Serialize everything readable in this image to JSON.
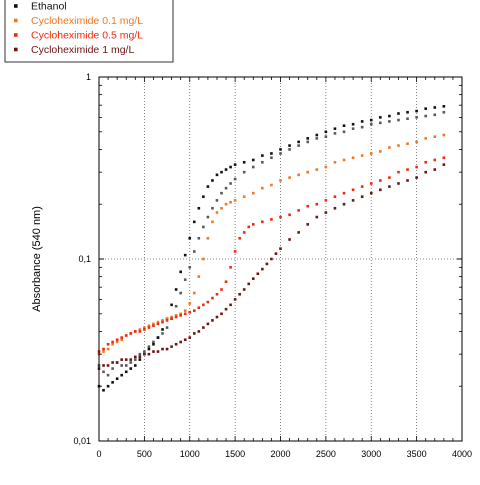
{
  "chart_data": {
    "type": "scatter",
    "title": "",
    "xlabel": "",
    "ylabel": "Absorbance (540 nm)",
    "xlim": [
      0,
      4000
    ],
    "ylim": [
      0.01,
      1
    ],
    "yscale": "log",
    "grid": true,
    "legend_position": "top-left outside plot",
    "x_ticks": [
      0,
      500,
      1000,
      1500,
      2000,
      2500,
      3000,
      3500,
      4000
    ],
    "x_tick_labels": [
      "0",
      "500",
      "1000",
      "1500",
      "2000",
      "2500",
      "3000",
      "3500",
      "4000"
    ],
    "y_ticks": [
      0.01,
      0.1,
      1
    ],
    "y_tick_labels": [
      "0,01",
      "0,1",
      "1"
    ],
    "series": [
      {
        "name": "",
        "color": "#595959",
        "legend": false,
        "points": [
          [
            0,
            0.026
          ],
          [
            50,
            0.024
          ],
          [
            100,
            0.023
          ],
          [
            150,
            0.025
          ],
          [
            200,
            0.027
          ],
          [
            250,
            0.026
          ],
          [
            300,
            0.026
          ],
          [
            350,
            0.027
          ],
          [
            400,
            0.028
          ],
          [
            450,
            0.03
          ],
          [
            500,
            0.031
          ],
          [
            550,
            0.033
          ],
          [
            600,
            0.035
          ],
          [
            650,
            0.037
          ],
          [
            700,
            0.039
          ],
          [
            750,
            0.042
          ],
          [
            800,
            0.047
          ],
          [
            850,
            0.055
          ],
          [
            900,
            0.065
          ],
          [
            950,
            0.077
          ],
          [
            1000,
            0.09
          ],
          [
            1050,
            0.11
          ],
          [
            1100,
            0.13
          ],
          [
            1150,
            0.15
          ],
          [
            1200,
            0.17
          ],
          [
            1250,
            0.19
          ],
          [
            1300,
            0.21
          ],
          [
            1350,
            0.23
          ],
          [
            1400,
            0.245
          ],
          [
            1450,
            0.26
          ],
          [
            1500,
            0.275
          ],
          [
            1600,
            0.3
          ],
          [
            1700,
            0.32
          ],
          [
            1800,
            0.34
          ],
          [
            1900,
            0.36
          ],
          [
            2000,
            0.38
          ],
          [
            2100,
            0.4
          ],
          [
            2200,
            0.42
          ],
          [
            2300,
            0.44
          ],
          [
            2400,
            0.46
          ],
          [
            2500,
            0.47
          ],
          [
            2600,
            0.49
          ],
          [
            2700,
            0.5
          ],
          [
            2800,
            0.52
          ],
          [
            2900,
            0.53
          ],
          [
            3000,
            0.55
          ],
          [
            3100,
            0.56
          ],
          [
            3200,
            0.57
          ],
          [
            3300,
            0.58
          ],
          [
            3400,
            0.59
          ],
          [
            3500,
            0.6
          ],
          [
            3600,
            0.61
          ],
          [
            3700,
            0.62
          ],
          [
            3800,
            0.64
          ]
        ]
      },
      {
        "name": "Ethanol",
        "color": "#111111",
        "legend": true,
        "points": [
          [
            0,
            0.02
          ],
          [
            50,
            0.019
          ],
          [
            100,
            0.02
          ],
          [
            150,
            0.021
          ],
          [
            200,
            0.022
          ],
          [
            250,
            0.023
          ],
          [
            300,
            0.024
          ],
          [
            350,
            0.025
          ],
          [
            400,
            0.026
          ],
          [
            450,
            0.028
          ],
          [
            500,
            0.03
          ],
          [
            550,
            0.032
          ],
          [
            600,
            0.034
          ],
          [
            650,
            0.037
          ],
          [
            700,
            0.041
          ],
          [
            750,
            0.047
          ],
          [
            800,
            0.056
          ],
          [
            850,
            0.068
          ],
          [
            900,
            0.085
          ],
          [
            950,
            0.105
          ],
          [
            1000,
            0.13
          ],
          [
            1050,
            0.16
          ],
          [
            1100,
            0.19
          ],
          [
            1150,
            0.22
          ],
          [
            1200,
            0.25
          ],
          [
            1250,
            0.27
          ],
          [
            1300,
            0.29
          ],
          [
            1350,
            0.3
          ],
          [
            1400,
            0.31
          ],
          [
            1450,
            0.32
          ],
          [
            1500,
            0.33
          ],
          [
            1600,
            0.34
          ],
          [
            1700,
            0.35
          ],
          [
            1800,
            0.37
          ],
          [
            1900,
            0.38
          ],
          [
            2000,
            0.4
          ],
          [
            2100,
            0.42
          ],
          [
            2200,
            0.44
          ],
          [
            2300,
            0.46
          ],
          [
            2400,
            0.48
          ],
          [
            2500,
            0.5
          ],
          [
            2600,
            0.52
          ],
          [
            2700,
            0.54
          ],
          [
            2800,
            0.55
          ],
          [
            2900,
            0.57
          ],
          [
            3000,
            0.58
          ],
          [
            3100,
            0.6
          ],
          [
            3200,
            0.61
          ],
          [
            3300,
            0.63
          ],
          [
            3400,
            0.64
          ],
          [
            3500,
            0.65
          ],
          [
            3600,
            0.67
          ],
          [
            3700,
            0.68
          ],
          [
            3800,
            0.69
          ]
        ]
      },
      {
        "name": "Cycloheximide 0.1 mg/L",
        "color": "#f07820",
        "legend": true,
        "points": [
          [
            0,
            0.03
          ],
          [
            50,
            0.031
          ],
          [
            100,
            0.032
          ],
          [
            150,
            0.034
          ],
          [
            200,
            0.035
          ],
          [
            250,
            0.036
          ],
          [
            300,
            0.038
          ],
          [
            350,
            0.039
          ],
          [
            400,
            0.04
          ],
          [
            450,
            0.041
          ],
          [
            500,
            0.042
          ],
          [
            550,
            0.043
          ],
          [
            600,
            0.044
          ],
          [
            650,
            0.045
          ],
          [
            700,
            0.046
          ],
          [
            750,
            0.047
          ],
          [
            800,
            0.048
          ],
          [
            850,
            0.049
          ],
          [
            900,
            0.05
          ],
          [
            950,
            0.052
          ],
          [
            1000,
            0.057
          ],
          [
            1050,
            0.065
          ],
          [
            1100,
            0.08
          ],
          [
            1150,
            0.1
          ],
          [
            1200,
            0.13
          ],
          [
            1250,
            0.16
          ],
          [
            1300,
            0.18
          ],
          [
            1350,
            0.19
          ],
          [
            1400,
            0.2
          ],
          [
            1450,
            0.205
          ],
          [
            1500,
            0.21
          ],
          [
            1600,
            0.22
          ],
          [
            1700,
            0.23
          ],
          [
            1800,
            0.245
          ],
          [
            1900,
            0.255
          ],
          [
            2000,
            0.27
          ],
          [
            2100,
            0.28
          ],
          [
            2200,
            0.29
          ],
          [
            2300,
            0.3
          ],
          [
            2400,
            0.31
          ],
          [
            2500,
            0.32
          ],
          [
            2600,
            0.34
          ],
          [
            2700,
            0.35
          ],
          [
            2800,
            0.36
          ],
          [
            2900,
            0.37
          ],
          [
            3000,
            0.38
          ],
          [
            3100,
            0.39
          ],
          [
            3200,
            0.41
          ],
          [
            3300,
            0.42
          ],
          [
            3400,
            0.43
          ],
          [
            3500,
            0.44
          ],
          [
            3600,
            0.46
          ],
          [
            3700,
            0.47
          ],
          [
            3800,
            0.48
          ]
        ]
      },
      {
        "name": "Cycloheximide 0.5 mg/L",
        "color": "#ee2a0c",
        "legend": true,
        "points": [
          [
            0,
            0.031
          ],
          [
            50,
            0.032
          ],
          [
            100,
            0.034
          ],
          [
            150,
            0.035
          ],
          [
            200,
            0.036
          ],
          [
            250,
            0.037
          ],
          [
            300,
            0.038
          ],
          [
            350,
            0.039
          ],
          [
            400,
            0.04
          ],
          [
            450,
            0.04
          ],
          [
            500,
            0.041
          ],
          [
            550,
            0.042
          ],
          [
            600,
            0.043
          ],
          [
            650,
            0.044
          ],
          [
            700,
            0.045
          ],
          [
            750,
            0.046
          ],
          [
            800,
            0.047
          ],
          [
            850,
            0.048
          ],
          [
            900,
            0.049
          ],
          [
            950,
            0.05
          ],
          [
            1000,
            0.051
          ],
          [
            1050,
            0.052
          ],
          [
            1100,
            0.054
          ],
          [
            1150,
            0.056
          ],
          [
            1200,
            0.058
          ],
          [
            1250,
            0.061
          ],
          [
            1300,
            0.064
          ],
          [
            1350,
            0.068
          ],
          [
            1400,
            0.075
          ],
          [
            1450,
            0.09
          ],
          [
            1500,
            0.11
          ],
          [
            1550,
            0.13
          ],
          [
            1600,
            0.14
          ],
          [
            1650,
            0.15
          ],
          [
            1700,
            0.155
          ],
          [
            1800,
            0.16
          ],
          [
            1900,
            0.165
          ],
          [
            2000,
            0.17
          ],
          [
            2100,
            0.175
          ],
          [
            2200,
            0.185
          ],
          [
            2300,
            0.195
          ],
          [
            2400,
            0.2
          ],
          [
            2500,
            0.21
          ],
          [
            2600,
            0.22
          ],
          [
            2700,
            0.23
          ],
          [
            2800,
            0.24
          ],
          [
            2900,
            0.25
          ],
          [
            3000,
            0.26
          ],
          [
            3100,
            0.27
          ],
          [
            3200,
            0.28
          ],
          [
            3300,
            0.3
          ],
          [
            3400,
            0.31
          ],
          [
            3500,
            0.32
          ],
          [
            3600,
            0.34
          ],
          [
            3700,
            0.35
          ],
          [
            3800,
            0.36
          ]
        ]
      },
      {
        "name": "Cycloheximide 1 mg/L",
        "color": "#6e1414",
        "legend": true,
        "points": [
          [
            0,
            0.025
          ],
          [
            50,
            0.026
          ],
          [
            100,
            0.026
          ],
          [
            150,
            0.027
          ],
          [
            200,
            0.027
          ],
          [
            250,
            0.028
          ],
          [
            300,
            0.028
          ],
          [
            350,
            0.028
          ],
          [
            400,
            0.029
          ],
          [
            450,
            0.029
          ],
          [
            500,
            0.03
          ],
          [
            550,
            0.03
          ],
          [
            600,
            0.031
          ],
          [
            650,
            0.031
          ],
          [
            700,
            0.032
          ],
          [
            750,
            0.032
          ],
          [
            800,
            0.033
          ],
          [
            850,
            0.034
          ],
          [
            900,
            0.035
          ],
          [
            950,
            0.036
          ],
          [
            1000,
            0.037
          ],
          [
            1050,
            0.039
          ],
          [
            1100,
            0.04
          ],
          [
            1150,
            0.042
          ],
          [
            1200,
            0.044
          ],
          [
            1250,
            0.046
          ],
          [
            1300,
            0.048
          ],
          [
            1350,
            0.05
          ],
          [
            1400,
            0.053
          ],
          [
            1450,
            0.056
          ],
          [
            1500,
            0.06
          ],
          [
            1550,
            0.064
          ],
          [
            1600,
            0.068
          ],
          [
            1650,
            0.073
          ],
          [
            1700,
            0.078
          ],
          [
            1750,
            0.083
          ],
          [
            1800,
            0.088
          ],
          [
            1850,
            0.094
          ],
          [
            1900,
            0.1
          ],
          [
            1950,
            0.107
          ],
          [
            2000,
            0.114
          ],
          [
            2100,
            0.128
          ],
          [
            2200,
            0.14
          ],
          [
            2300,
            0.155
          ],
          [
            2400,
            0.17
          ],
          [
            2500,
            0.18
          ],
          [
            2600,
            0.19
          ],
          [
            2700,
            0.2
          ],
          [
            2800,
            0.21
          ],
          [
            2900,
            0.22
          ],
          [
            3000,
            0.23
          ],
          [
            3100,
            0.24
          ],
          [
            3200,
            0.25
          ],
          [
            3300,
            0.26
          ],
          [
            3400,
            0.27
          ],
          [
            3500,
            0.28
          ],
          [
            3600,
            0.3
          ],
          [
            3700,
            0.31
          ],
          [
            3800,
            0.33
          ]
        ]
      }
    ]
  }
}
